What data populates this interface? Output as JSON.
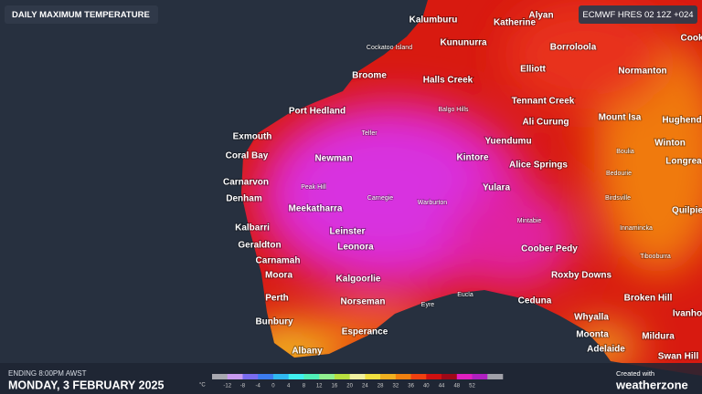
{
  "header": {
    "title": "DAILY MAXIMUM TEMPERATURE",
    "model": "ECMWF HRES 02 12Z +024"
  },
  "footer": {
    "ending": "ENDING 8:00PM AWST",
    "date": "MONDAY, 3 FEBRUARY 2025",
    "credit": "Created with",
    "brand": "weatherzone"
  },
  "legend": {
    "unit": "°C",
    "ticks": [
      -12,
      -8,
      -4,
      0,
      4,
      8,
      12,
      16,
      20,
      24,
      28,
      32,
      36,
      40,
      44,
      48,
      52
    ],
    "colors": [
      "#a8a8b0",
      "#c89af0",
      "#7a6cf0",
      "#3c7cf0",
      "#30b8f0",
      "#40f0f0",
      "#50f0b8",
      "#90f090",
      "#b8e040",
      "#f0f0a0",
      "#f0e040",
      "#f0b020",
      "#f08010",
      "#f04010",
      "#d01010",
      "#a00818",
      "#e020c0",
      "#b020c0",
      "#a0a0a8"
    ]
  },
  "cities": [
    "Kalumburu",
    "Katherine",
    "Alyan",
    "Kununurra",
    "Borroloola",
    "Cook",
    "Broome",
    "Halls Creek",
    "Elliott",
    "Normanton",
    "Tennant Creek",
    "Port Hedland",
    "Ali Curung",
    "Mount Isa",
    "Hughend",
    "Exmouth",
    "Yuendumu",
    "Winton",
    "Coral Bay",
    "Newman",
    "Kintore",
    "Alice Springs",
    "Longrea",
    "Carnarvon",
    "Yulara",
    "Denham",
    "Meekatharra",
    "Quilpie",
    "Kalbarri",
    "Leinster",
    "Geraldton",
    "Leonora",
    "Coober Pedy",
    "Carnamah",
    "Moora",
    "Roxby Downs",
    "Kalgoorlie",
    "Perth",
    "Norseman",
    "Ceduna",
    "Broken Hill",
    "Ivanho",
    "Bunbury",
    "Whyalla",
    "Esperance",
    "Moonta",
    "Mildura",
    "Albany",
    "Adelaide",
    "Swan Hill"
  ],
  "towns": [
    "Cockatoo Island",
    "Balgo Hills",
    "Telfer",
    "Boulia",
    "Bedourie",
    "Peak Hill",
    "Carnegie",
    "Warburton",
    "Birdsville",
    "Mintabie",
    "Innamincka",
    "Tibooburra",
    "Eucla",
    "Eyre"
  ]
}
